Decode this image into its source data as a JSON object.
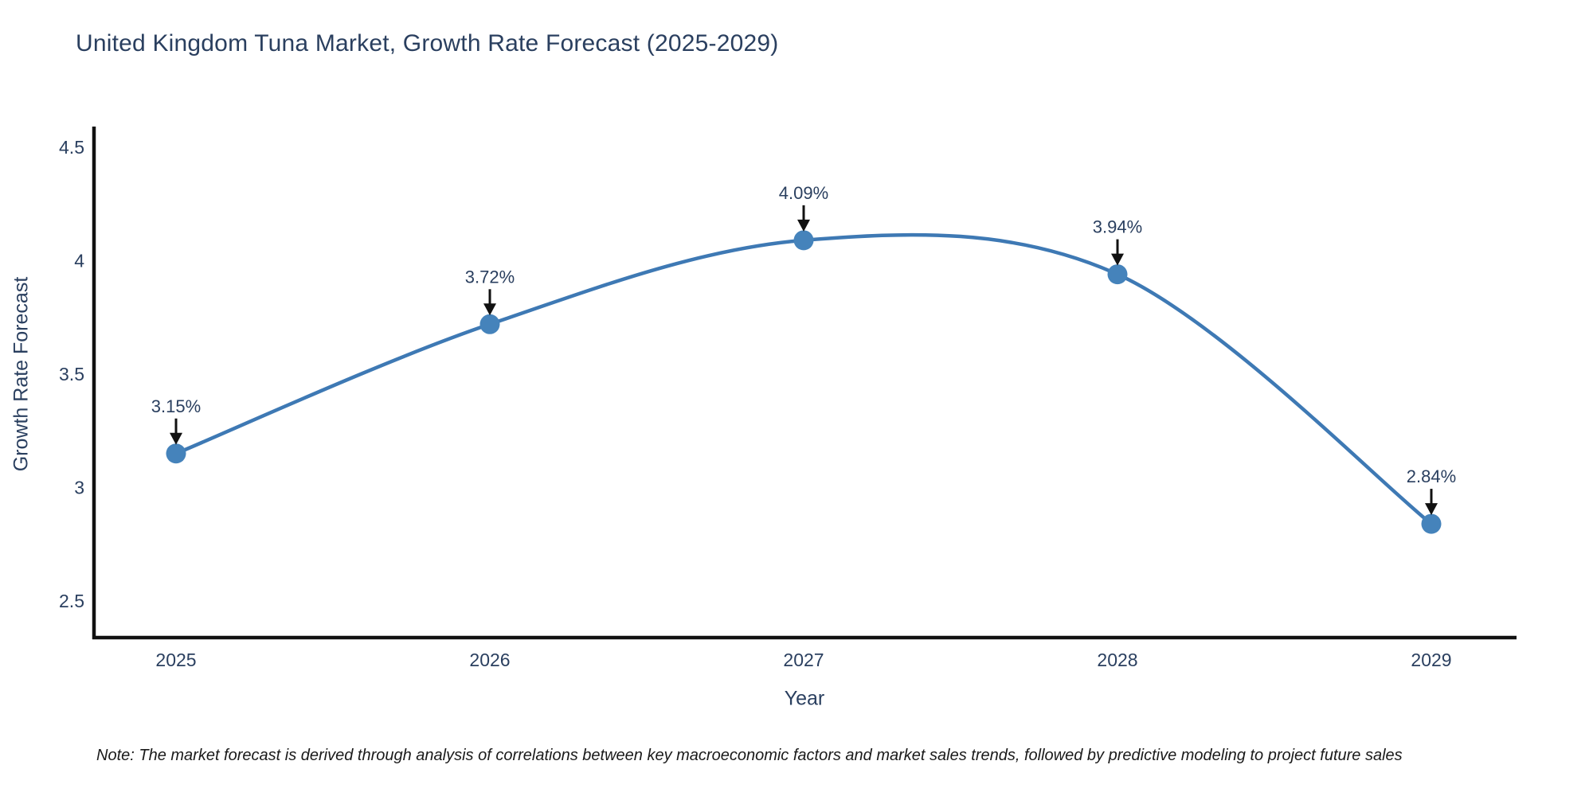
{
  "title": "United Kingdom Tuna Market, Growth Rate Forecast (2025-2029)",
  "note": "Note: The market forecast is derived through analysis of correlations between key macroeconomic factors and market sales trends, followed by predictive modeling to project future sales",
  "chart_data": {
    "type": "line",
    "title": "United Kingdom Tuna Market, Growth Rate Forecast (2025-2029)",
    "xlabel": "Year",
    "ylabel": "Growth Rate Forecast",
    "x": [
      2025,
      2026,
      2027,
      2028,
      2029
    ],
    "values": [
      3.15,
      3.72,
      4.09,
      3.94,
      2.84
    ],
    "point_labels": [
      "3.15%",
      "3.72%",
      "4.09%",
      "3.94%",
      "2.84%"
    ],
    "xtick_labels": [
      "2025",
      "2026",
      "2027",
      "2028",
      "2029"
    ],
    "ytick_values": [
      2.5,
      3,
      3.5,
      4,
      4.5
    ],
    "ytick_labels": [
      "2.5",
      "3",
      "3.5",
      "4",
      "4.5"
    ],
    "xlim": [
      2024.74,
      2029.27
    ],
    "ylim": [
      2.34,
      4.59
    ],
    "grid": false,
    "legend": false,
    "line_style": "spline",
    "colors": {
      "line": "#3e79b4",
      "marker": "#4583bb",
      "axis": "#111111",
      "text": "#2a3f5f",
      "annotation_arrow": "#111111"
    }
  }
}
